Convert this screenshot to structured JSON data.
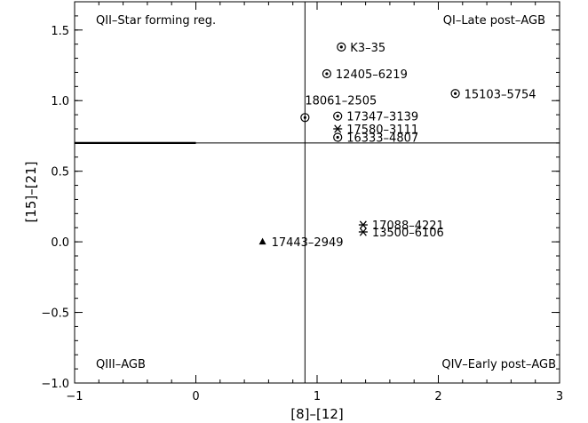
{
  "chart_data": {
    "type": "scatter",
    "title": "",
    "xlabel": "[8]–[12]",
    "ylabel": "[15]–[21]",
    "xlim": [
      -1,
      3
    ],
    "ylim": [
      -1.0,
      1.7
    ],
    "xticks": [
      -1,
      0,
      1,
      2,
      3
    ],
    "yticks": [
      -1.0,
      -0.5,
      0.0,
      0.5,
      1.0,
      1.5
    ],
    "xtick_labels": [
      "−1",
      "0",
      "1",
      "2",
      "3"
    ],
    "ytick_labels": [
      "−1.0",
      "−0.5",
      "0.0",
      "0.5",
      "1.0",
      "1.5"
    ],
    "grid": false,
    "divider_x": 0.9,
    "divider_y": 0.7,
    "quadrant_labels": {
      "top_left": "QII–Star forming reg.",
      "top_right": "QI–Late post–AGB",
      "bottom_left": "QIII–AGB",
      "bottom_right": "QIV–Early post–AGB"
    },
    "points": [
      {
        "name": "K3–35",
        "x": 1.2,
        "y": 1.38,
        "marker": "circle-dot"
      },
      {
        "name": "12405–6219",
        "x": 1.08,
        "y": 1.19,
        "marker": "circle-dot"
      },
      {
        "name": "15103–5754",
        "x": 2.14,
        "y": 1.05,
        "marker": "circle-dot"
      },
      {
        "name": "18061–2505",
        "x": 0.9,
        "y": 0.88,
        "marker": "circle-dot"
      },
      {
        "name": "17347–3139",
        "x": 1.17,
        "y": 0.89,
        "marker": "circle-dot"
      },
      {
        "name": "17580–3111",
        "x": 1.17,
        "y": 0.8,
        "marker": "asterisk"
      },
      {
        "name": "16333–4807",
        "x": 1.17,
        "y": 0.74,
        "marker": "circle-dot"
      },
      {
        "name": "17088–4221",
        "x": 1.38,
        "y": 0.12,
        "marker": "asterisk"
      },
      {
        "name": "13500–6106",
        "x": 1.38,
        "y": 0.07,
        "marker": "asterisk"
      },
      {
        "name": "17443–2949",
        "x": 0.55,
        "y": 0.0,
        "marker": "triangle"
      }
    ]
  }
}
